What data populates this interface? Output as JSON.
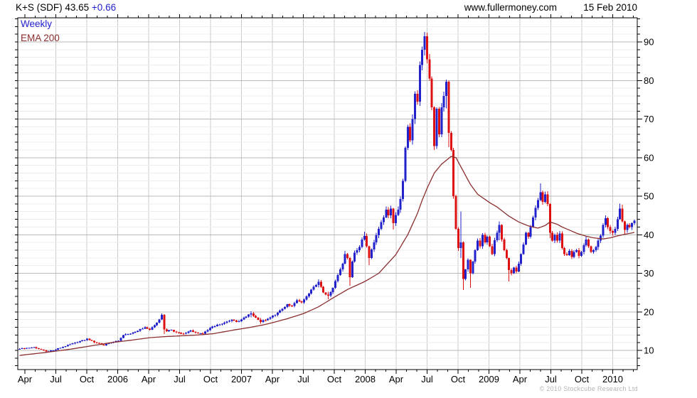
{
  "header": {
    "symbol_title": "K+S (SDF) 43.65 ",
    "change": "+0.66",
    "source": "www.fullermoney.com",
    "date": "15 Feb 2010"
  },
  "legend": {
    "series1": "Weekly",
    "series2": "EMA 200"
  },
  "footer": {
    "copyright": "© 2010 Stockcube Research Ltd"
  },
  "colors": {
    "up": "#2222cc",
    "down": "#dd1111",
    "ema": "#8b2e2e",
    "grid_minor": "#ededed",
    "grid_major": "#b9b9b9",
    "grid_vertical": "#cccccc",
    "axis": "#000000",
    "text": "#000000",
    "copyright": "#b4b4b4",
    "accent_blue": "#2222cc"
  },
  "chart_data": {
    "type": "candlestick",
    "instrument": "K+S (SDF)",
    "frequency": "weekly",
    "last_price": 43.65,
    "change": 0.66,
    "title": "K+S (SDF) 43.65 +0.66",
    "x_axis": {
      "labels": [
        "Apr",
        "Jul",
        "Oct",
        "2006",
        "Apr",
        "Jul",
        "Oct",
        "2007",
        "Apr",
        "Jul",
        "Oct",
        "2008",
        "Apr",
        "Jul",
        "Oct",
        "2009",
        "Apr",
        "Jul",
        "Oct",
        "2010"
      ],
      "start": "Mar 2005",
      "end": "Feb 2010",
      "weeks": 256
    },
    "y_axis": {
      "tick_labels": [
        10,
        20,
        30,
        40,
        50,
        60,
        70,
        80,
        90
      ],
      "minor_step": 2,
      "range": [
        5,
        96
      ]
    },
    "key_points": {
      "all_time_high": 92.6,
      "high_date": "Jun 2008",
      "crash_low": 25.7,
      "crash_low_date": "Oct 2008",
      "ema_peak": 60.3,
      "final_close": 43.65
    },
    "series": [
      {
        "name": "Weekly",
        "style": "candles",
        "close_anchors": [
          [
            0,
            10.4
          ],
          [
            3,
            10.6
          ],
          [
            6,
            10.8
          ],
          [
            9,
            10.2
          ],
          [
            11,
            9.7
          ],
          [
            14,
            10.0
          ],
          [
            18,
            10.9
          ],
          [
            22,
            11.8
          ],
          [
            26,
            12.6
          ],
          [
            28,
            13.0
          ],
          [
            31,
            12.1
          ],
          [
            33,
            11.8
          ],
          [
            35,
            11.3
          ],
          [
            38,
            12.0
          ],
          [
            41,
            12.5
          ],
          [
            43,
            14.0
          ],
          [
            46,
            14.3
          ],
          [
            50,
            15.5
          ],
          [
            52,
            16.0
          ],
          [
            54,
            15.3
          ],
          [
            56,
            16.5
          ],
          [
            58,
            18.0
          ],
          [
            59,
            19.2
          ],
          [
            60,
            15.4
          ],
          [
            61,
            15.0
          ],
          [
            63,
            15.3
          ],
          [
            65,
            14.7
          ],
          [
            68,
            14.3
          ],
          [
            71,
            15.2
          ],
          [
            73,
            14.6
          ],
          [
            76,
            14.3
          ],
          [
            79,
            15.8
          ],
          [
            82,
            16.6
          ],
          [
            85,
            17.2
          ],
          [
            88,
            17.9
          ],
          [
            90,
            17.4
          ],
          [
            92,
            18.0
          ],
          [
            94,
            18.8
          ],
          [
            96,
            19.6
          ],
          [
            98,
            18.5
          ],
          [
            100,
            17.4
          ],
          [
            103,
            18.2
          ],
          [
            106,
            19.2
          ],
          [
            109,
            20.8
          ],
          [
            111,
            22.0
          ],
          [
            113,
            21.5
          ],
          [
            115,
            23.0
          ],
          [
            117,
            22.4
          ],
          [
            119,
            24.0
          ],
          [
            122,
            26.5
          ],
          [
            124,
            27.8
          ],
          [
            126,
            25.0
          ],
          [
            128,
            24.2
          ],
          [
            130,
            26.2
          ],
          [
            131,
            28.0
          ],
          [
            132,
            29.5
          ],
          [
            133,
            31.0
          ],
          [
            134,
            32.5
          ],
          [
            135,
            35.0
          ],
          [
            136,
            34.0
          ],
          [
            137,
            29.0
          ],
          [
            138,
            33.0
          ],
          [
            139,
            35.3
          ],
          [
            141,
            36.8
          ],
          [
            142,
            38.8
          ],
          [
            143,
            39.7
          ],
          [
            144,
            37.0
          ],
          [
            145,
            34.0
          ],
          [
            147,
            38.0
          ],
          [
            149,
            41.5
          ],
          [
            151,
            44.5
          ],
          [
            152,
            46.5
          ],
          [
            153,
            45.0
          ],
          [
            154,
            46.8
          ],
          [
            155,
            43.0
          ],
          [
            157,
            46.5
          ],
          [
            158,
            49.3
          ],
          [
            159,
            54.0
          ],
          [
            160,
            62.5
          ],
          [
            161,
            68.0
          ],
          [
            162,
            64.5
          ],
          [
            163,
            70.0
          ],
          [
            164,
            76.5
          ],
          [
            165,
            74.5
          ],
          [
            166,
            84.0
          ],
          [
            167,
            88.0
          ],
          [
            168,
            91.5
          ],
          [
            169,
            85.5
          ],
          [
            170,
            80.5
          ],
          [
            171,
            73.0
          ],
          [
            172,
            63.0
          ],
          [
            173,
            72.7
          ],
          [
            174,
            66.0
          ],
          [
            175,
            73.0
          ],
          [
            176,
            76.0
          ],
          [
            177,
            79.7
          ],
          [
            178,
            66.4
          ],
          [
            179,
            62.0
          ],
          [
            180,
            50.0
          ],
          [
            181,
            41.5
          ],
          [
            182,
            36.5
          ],
          [
            183,
            38.0
          ],
          [
            184,
            28.5
          ],
          [
            185,
            31.0
          ],
          [
            186,
            33.5
          ],
          [
            187,
            30.0
          ],
          [
            188,
            33.0
          ],
          [
            189,
            36.0
          ],
          [
            190,
            38.5
          ],
          [
            191,
            37.0
          ],
          [
            192,
            40.0
          ],
          [
            193,
            38.0
          ],
          [
            194,
            39.5
          ],
          [
            195,
            37.0
          ],
          [
            196,
            35.0
          ],
          [
            197,
            38.6
          ],
          [
            198,
            40.5
          ],
          [
            199,
            42.5
          ],
          [
            200,
            38.8
          ],
          [
            201,
            36.0
          ],
          [
            202,
            34.0
          ],
          [
            203,
            30.8
          ],
          [
            204,
            30.0
          ],
          [
            205,
            31.5
          ],
          [
            206,
            30.5
          ],
          [
            207,
            32.5
          ],
          [
            208,
            35.0
          ],
          [
            209,
            37.5
          ],
          [
            210,
            40.5
          ],
          [
            211,
            39.5
          ],
          [
            212,
            42.0
          ],
          [
            213,
            44.5
          ],
          [
            214,
            47.0
          ],
          [
            215,
            49.0
          ],
          [
            216,
            51.0
          ],
          [
            217,
            48.5
          ],
          [
            218,
            50.5
          ],
          [
            219,
            48.0
          ],
          [
            220,
            40.5
          ],
          [
            221,
            38.5
          ],
          [
            222,
            40.0
          ],
          [
            223,
            38.5
          ],
          [
            224,
            40.3
          ],
          [
            225,
            36.5
          ],
          [
            226,
            35.0
          ],
          [
            227,
            34.7
          ],
          [
            228,
            35.8
          ],
          [
            229,
            34.2
          ],
          [
            230,
            35.5
          ],
          [
            231,
            36.0
          ],
          [
            232,
            34.5
          ],
          [
            233,
            35.5
          ],
          [
            234,
            37.3
          ],
          [
            235,
            38.8
          ],
          [
            236,
            37.0
          ],
          [
            237,
            35.5
          ],
          [
            238,
            36.0
          ],
          [
            239,
            36.8
          ],
          [
            240,
            38.5
          ],
          [
            241,
            39.8
          ],
          [
            242,
            42.5
          ],
          [
            243,
            44.3
          ],
          [
            244,
            42.0
          ],
          [
            245,
            41.0
          ],
          [
            246,
            40.5
          ],
          [
            247,
            41.5
          ],
          [
            248,
            44.0
          ],
          [
            249,
            46.8
          ],
          [
            250,
            43.5
          ],
          [
            251,
            41.2
          ],
          [
            252,
            42.5
          ],
          [
            253,
            42.0
          ],
          [
            254,
            43.0
          ],
          [
            255,
            43.65
          ]
        ],
        "wick_overrides": [
          [
            59,
            19.6,
            17.8
          ],
          [
            60,
            19.4,
            14.2
          ],
          [
            96,
            20.1,
            18.6
          ],
          [
            100,
            18.4,
            16.9
          ],
          [
            124,
            28.4,
            26.3
          ],
          [
            128,
            25.2,
            23.3
          ],
          [
            135,
            35.8,
            32.3
          ],
          [
            137,
            34.2,
            26.8
          ],
          [
            143,
            40.8,
            38.5
          ],
          [
            145,
            37.2,
            32.1
          ],
          [
            152,
            47.3,
            44.3
          ],
          [
            155,
            47.0,
            41.3
          ],
          [
            168,
            92.6,
            86.5
          ],
          [
            172,
            73.3,
            62.0
          ],
          [
            177,
            80.2,
            72.8
          ],
          [
            178,
            80.0,
            62.7
          ],
          [
            183,
            46.0,
            34.0
          ],
          [
            184,
            38.3,
            25.7
          ],
          [
            187,
            33.6,
            26.2
          ],
          [
            199,
            43.5,
            38.6
          ],
          [
            203,
            34.1,
            27.9
          ],
          [
            216,
            53.3,
            48.7
          ],
          [
            220,
            48.2,
            39.1
          ],
          [
            235,
            39.7,
            36.9
          ],
          [
            243,
            45.0,
            41.9
          ],
          [
            249,
            48.1,
            43.9
          ],
          [
            250,
            47.8,
            43.2
          ],
          [
            251,
            43.6,
            40.1
          ]
        ]
      },
      {
        "name": "EMA 200",
        "style": "line",
        "points": [
          [
            0,
            8.7
          ],
          [
            10,
            9.4
          ],
          [
            21,
            10.3
          ],
          [
            30,
            11.2
          ],
          [
            39,
            12.1
          ],
          [
            47,
            12.7
          ],
          [
            54,
            13.3
          ],
          [
            61,
            13.6
          ],
          [
            68,
            13.8
          ],
          [
            74,
            14.0
          ],
          [
            80,
            14.3
          ],
          [
            89,
            15.3
          ],
          [
            96,
            16.0
          ],
          [
            101,
            16.6
          ],
          [
            105,
            17.2
          ],
          [
            111,
            18.2
          ],
          [
            118,
            19.6
          ],
          [
            124,
            21.3
          ],
          [
            130,
            23.6
          ],
          [
            136,
            25.8
          ],
          [
            143,
            27.8
          ],
          [
            149,
            30.0
          ],
          [
            156,
            34.8
          ],
          [
            161,
            40.0
          ],
          [
            165,
            45.5
          ],
          [
            167,
            49.0
          ],
          [
            169,
            52.0
          ],
          [
            172,
            56.0
          ],
          [
            175,
            58.3
          ],
          [
            179,
            60.3
          ],
          [
            181,
            60.0
          ],
          [
            184,
            56.5
          ],
          [
            187,
            53.0
          ],
          [
            190,
            50.5
          ],
          [
            195,
            48.3
          ],
          [
            198,
            47.2
          ],
          [
            203,
            44.8
          ],
          [
            207,
            43.3
          ],
          [
            211,
            42.3
          ],
          [
            215,
            41.7
          ],
          [
            218,
            42.4
          ],
          [
            220,
            43.3
          ],
          [
            223,
            42.7
          ],
          [
            225,
            42.0
          ],
          [
            228,
            41.2
          ],
          [
            231,
            40.4
          ],
          [
            235,
            39.6
          ],
          [
            238,
            39.2
          ],
          [
            242,
            38.9
          ],
          [
            245,
            39.2
          ],
          [
            248,
            39.7
          ],
          [
            251,
            40.1
          ],
          [
            255,
            40.6
          ]
        ]
      }
    ]
  }
}
